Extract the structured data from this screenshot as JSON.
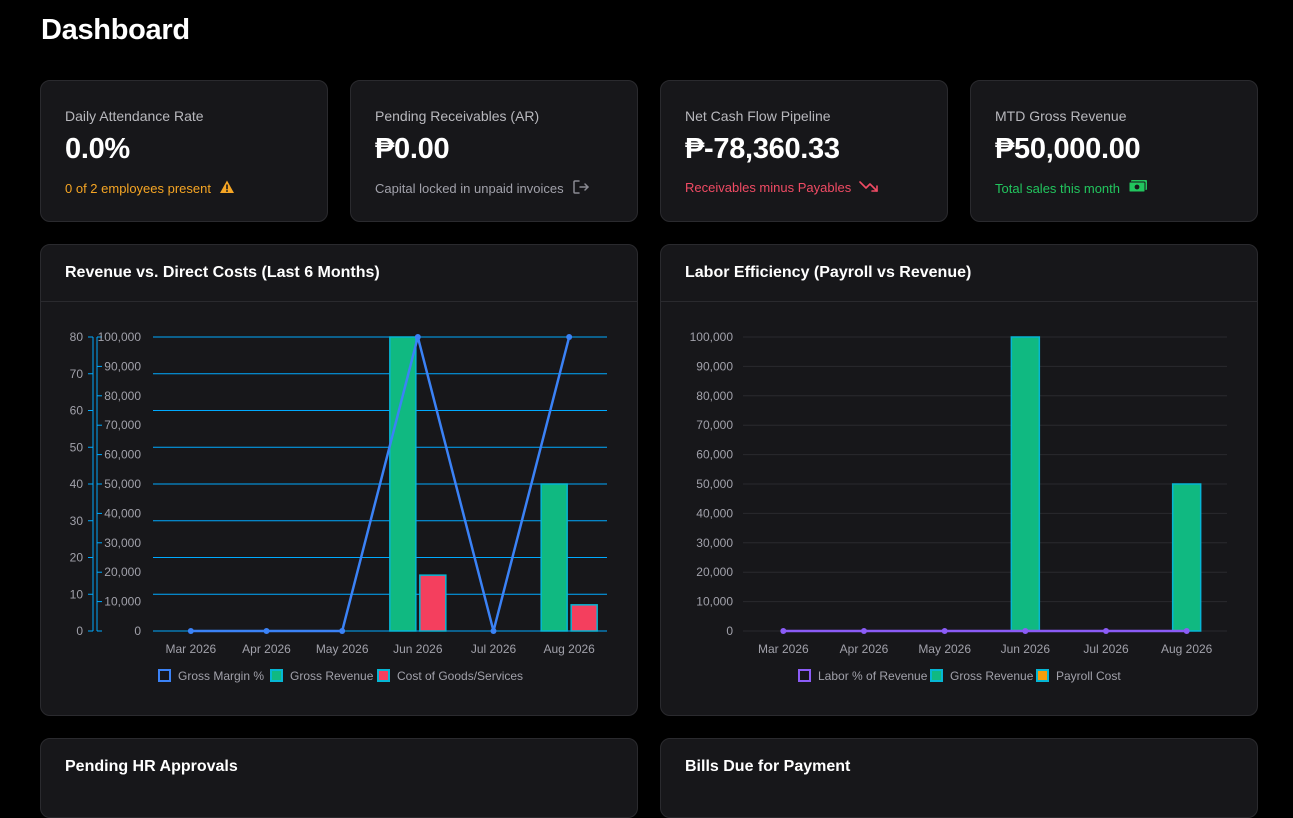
{
  "page": {
    "title": "Dashboard"
  },
  "kpis": [
    {
      "label": "Daily Attendance Rate",
      "value": "0.0%",
      "sub": "0 of 2 employees present",
      "sub_color": "#f5a524",
      "icon": "warning-icon"
    },
    {
      "label": "Pending Receivables (AR)",
      "value": "₱0.00",
      "sub": "Capital locked in unpaid invoices",
      "sub_color": "#a1a1aa",
      "icon": "logout-icon"
    },
    {
      "label": "Net Cash Flow Pipeline",
      "value": "₱-78,360.33",
      "sub": "Receivables minus Payables",
      "sub_color": "#f04b64",
      "icon": "trending-down-icon"
    },
    {
      "label": "MTD Gross Revenue",
      "value": "₱50,000.00",
      "sub": "Total sales this month",
      "sub_color": "#22c55e",
      "icon": "cash-icon"
    }
  ],
  "charts": {
    "revenue": {
      "title": "Revenue vs. Direct Costs (Last 6 Months)",
      "chart_data": {
        "type": "bar",
        "categories": [
          "Mar 2026",
          "Apr 2026",
          "May 2026",
          "Jun 2026",
          "Jul 2026",
          "Aug 2026"
        ],
        "series": [
          {
            "name": "Gross Margin %",
            "kind": "line",
            "axis": "left",
            "color": "#3b82f6",
            "values": [
              0,
              0,
              0,
              80,
              0,
              80
            ]
          },
          {
            "name": "Gross Revenue",
            "kind": "bar",
            "axis": "right",
            "color": "#10b981",
            "values": [
              0,
              0,
              0,
              100000,
              0,
              50000
            ]
          },
          {
            "name": "Cost of Goods/Services",
            "kind": "bar",
            "axis": "right",
            "color": "#f43f5e",
            "values": [
              0,
              0,
              0,
              19000,
              0,
              8900
            ]
          }
        ],
        "left_axis": {
          "ylim": [
            0,
            80
          ],
          "ticks": [
            "0",
            "10",
            "20",
            "30",
            "40",
            "50",
            "60",
            "70",
            "80"
          ]
        },
        "right_axis": {
          "ylim": [
            0,
            100000
          ],
          "ticks": [
            "0",
            "10,000",
            "20,000",
            "30,000",
            "40,000",
            "50,000",
            "60,000",
            "70,000",
            "80,000",
            "90,000",
            "100,000"
          ]
        },
        "grid_color": "#00aaff"
      }
    },
    "labor": {
      "title": "Labor Efficiency (Payroll vs Revenue)",
      "chart_data": {
        "type": "bar",
        "categories": [
          "Mar 2026",
          "Apr 2026",
          "May 2026",
          "Jun 2026",
          "Jul 2026",
          "Aug 2026"
        ],
        "series": [
          {
            "name": "Labor % of Revenue",
            "kind": "line",
            "color": "#8b5cf6",
            "values": [
              0,
              0,
              0,
              0,
              0,
              0
            ]
          },
          {
            "name": "Gross Revenue",
            "kind": "bar",
            "color": "#10b981",
            "values": [
              0,
              0,
              0,
              100000,
              0,
              50000
            ]
          },
          {
            "name": "Payroll Cost",
            "kind": "bar",
            "color": "#f59e0b",
            "values": [
              0,
              0,
              0,
              0,
              0,
              0
            ]
          }
        ],
        "left_axis": {
          "ylim": [
            0,
            100000
          ],
          "ticks": [
            "0",
            "10,000",
            "20,000",
            "30,000",
            "40,000",
            "50,000",
            "60,000",
            "70,000",
            "80,000",
            "90,000",
            "100,000"
          ]
        },
        "grid_color": "#2a2a2e"
      }
    }
  },
  "panels": {
    "hr": {
      "title": "Pending HR Approvals"
    },
    "bills": {
      "title": "Bills Due for Payment"
    }
  }
}
